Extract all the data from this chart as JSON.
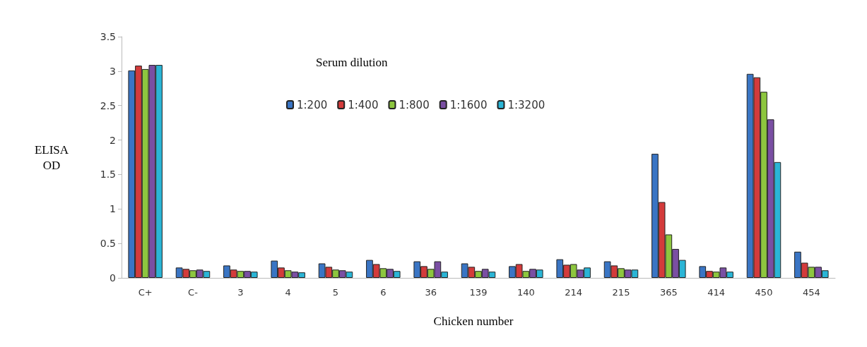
{
  "chart_data": {
    "type": "bar",
    "xlabel": "Chicken number",
    "ylabel": "ELISA OD",
    "legend_title": "Serum dilution",
    "categories": [
      "C+",
      "C-",
      "3",
      "4",
      "5",
      "6",
      "36",
      "139",
      "140",
      "214",
      "215",
      "365",
      "414",
      "450",
      "454"
    ],
    "series": [
      {
        "name": "1:200",
        "color": "#3a75c4",
        "values": [
          3.01,
          0.15,
          0.18,
          0.25,
          0.21,
          0.26,
          0.24,
          0.21,
          0.17,
          0.27,
          0.24,
          1.8,
          0.17,
          2.96,
          0.38
        ]
      },
      {
        "name": "1:400",
        "color": "#d33b3b",
        "values": [
          3.08,
          0.13,
          0.12,
          0.15,
          0.16,
          0.2,
          0.17,
          0.16,
          0.2,
          0.19,
          0.18,
          1.1,
          0.1,
          2.91,
          0.22
        ]
      },
      {
        "name": "1:800",
        "color": "#8dc63f",
        "values": [
          3.03,
          0.11,
          0.1,
          0.11,
          0.12,
          0.14,
          0.13,
          0.1,
          0.1,
          0.2,
          0.14,
          0.63,
          0.09,
          2.7,
          0.16
        ]
      },
      {
        "name": "1:1600",
        "color": "#7a4fa3",
        "values": [
          3.09,
          0.12,
          0.1,
          0.09,
          0.11,
          0.13,
          0.24,
          0.13,
          0.13,
          0.12,
          0.12,
          0.42,
          0.15,
          2.3,
          0.16
        ]
      },
      {
        "name": "1:3200",
        "color": "#2bb5d6",
        "values": [
          3.09,
          0.1,
          0.09,
          0.08,
          0.09,
          0.1,
          0.09,
          0.09,
          0.12,
          0.15,
          0.12,
          0.26,
          0.09,
          1.68,
          0.11
        ]
      }
    ],
    "ylim": [
      0,
      3.5
    ],
    "yticks": [
      0,
      0.5,
      1,
      1.5,
      2,
      2.5,
      3,
      3.5
    ],
    "grid": false,
    "legend": "top"
  }
}
